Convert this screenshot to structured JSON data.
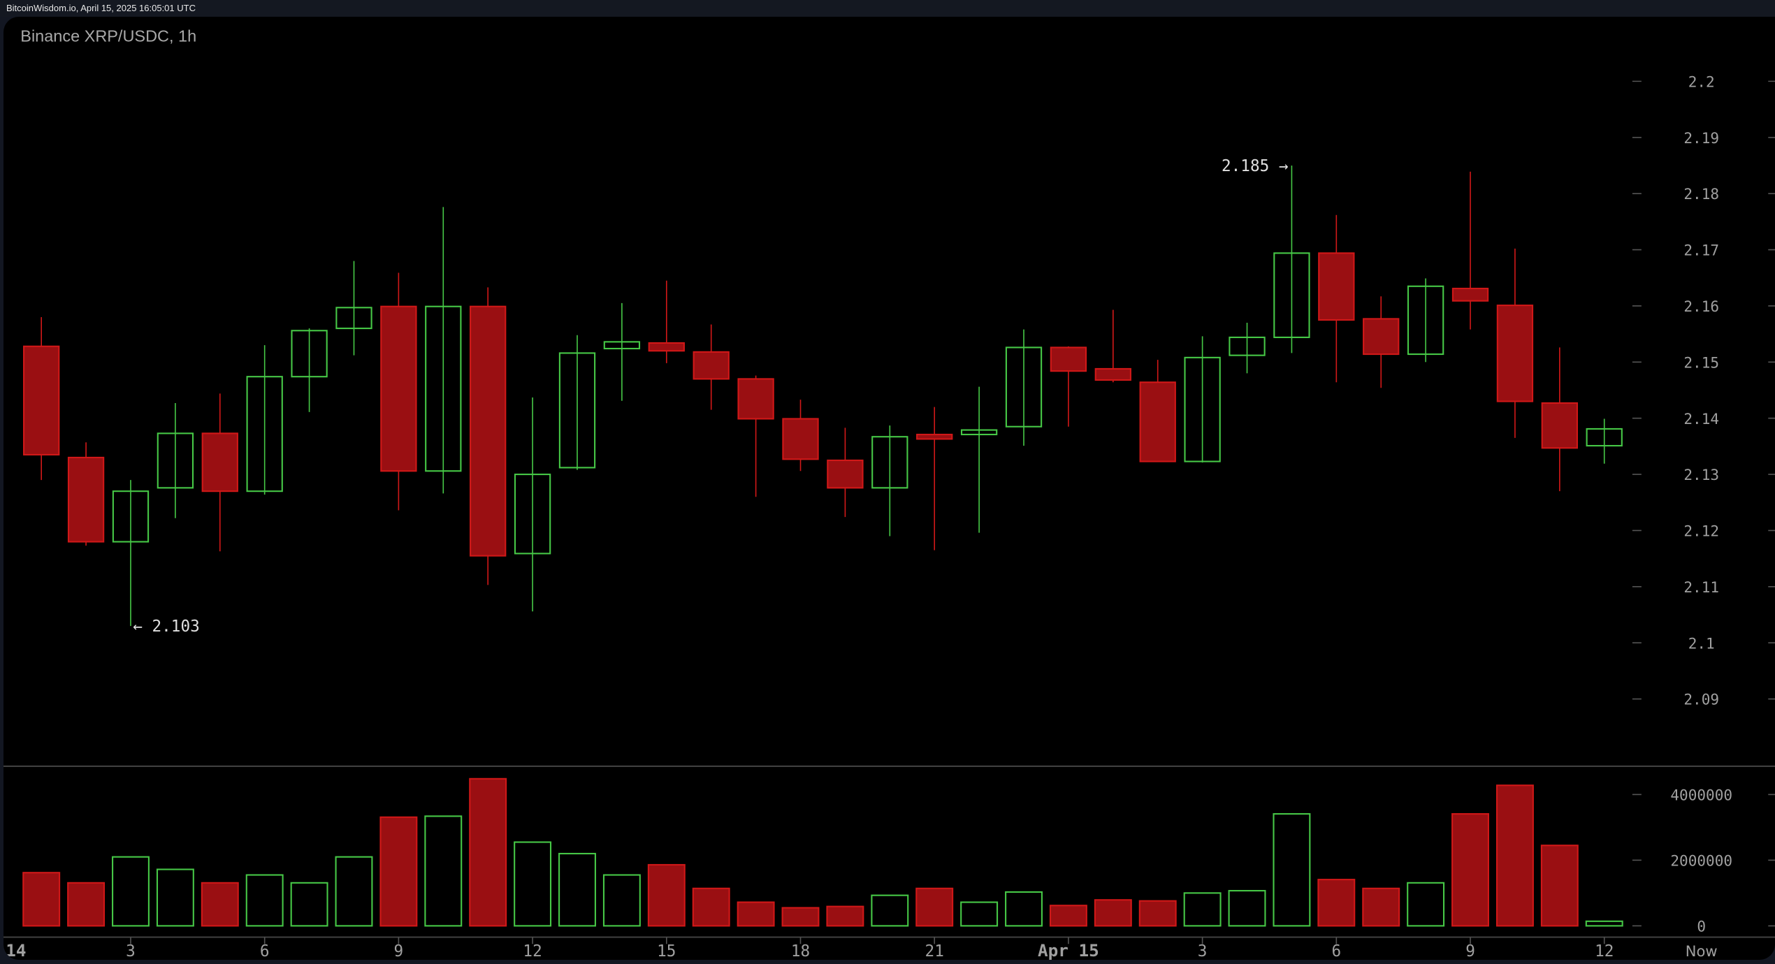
{
  "header": {
    "source_timestamp": "BitcoinWisdom.io, April 15, 2025 16:05:01 UTC"
  },
  "chart_data": {
    "type": "candlestick",
    "title": "Binance XRP/USDC, 1h",
    "colors": {
      "up": "#46c746",
      "down": "#d01818",
      "down_fill": "#9a0f12",
      "background": "#000000",
      "axis_text": "#a0a0a0"
    },
    "price_axis": {
      "ticks": [
        "2.2",
        "2.19",
        "2.18",
        "2.17",
        "2.16",
        "2.15",
        "2.14",
        "2.13",
        "2.12",
        "2.11",
        "2.1",
        "2.09"
      ],
      "range": [
        2.085,
        2.205
      ]
    },
    "volume_axis": {
      "ticks": [
        "4000000",
        "2000000",
        "0"
      ],
      "range": [
        0,
        4600000
      ]
    },
    "x_axis": {
      "ticks": [
        {
          "label": "14",
          "hour": 0
        },
        {
          "label": "3",
          "hour": 3
        },
        {
          "label": "6",
          "hour": 6
        },
        {
          "label": "9",
          "hour": 9
        },
        {
          "label": "12",
          "hour": 12
        },
        {
          "label": "15",
          "hour": 15
        },
        {
          "label": "18",
          "hour": 18
        },
        {
          "label": "21",
          "hour": 21
        },
        {
          "label": "Apr 15",
          "hour": 24
        },
        {
          "label": "3",
          "hour": 27
        },
        {
          "label": "6",
          "hour": 30
        },
        {
          "label": "9",
          "hour": 33
        },
        {
          "label": "12",
          "hour": 36
        }
      ],
      "now_label": "Now"
    },
    "annotations": {
      "high": {
        "label": "2.185 →",
        "value": 2.185,
        "hour": 29
      },
      "low": {
        "label": "← 2.103",
        "value": 2.103,
        "hour": 3
      }
    },
    "candles": [
      {
        "h": 1,
        "o": 2.1528,
        "hi": 2.158,
        "lo": 2.129,
        "c": 2.1335,
        "v": 1620000
      },
      {
        "h": 2,
        "o": 2.133,
        "hi": 2.1357,
        "lo": 2.1173,
        "c": 2.118,
        "v": 1310000
      },
      {
        "h": 3,
        "o": 2.118,
        "hi": 2.129,
        "lo": 2.103,
        "c": 2.127,
        "v": 2100000
      },
      {
        "h": 4,
        "o": 2.1276,
        "hi": 2.1427,
        "lo": 2.1222,
        "c": 2.1373,
        "v": 1720000
      },
      {
        "h": 5,
        "o": 2.1373,
        "hi": 2.1444,
        "lo": 2.1163,
        "c": 2.127,
        "v": 1310000
      },
      {
        "h": 6,
        "o": 2.127,
        "hi": 2.153,
        "lo": 2.1264,
        "c": 2.1474,
        "v": 1550000
      },
      {
        "h": 7,
        "o": 2.1474,
        "hi": 2.156,
        "lo": 2.1411,
        "c": 2.1556,
        "v": 1310000
      },
      {
        "h": 8,
        "o": 2.156,
        "hi": 2.168,
        "lo": 2.1512,
        "c": 2.1597,
        "v": 2100000
      },
      {
        "h": 9,
        "o": 2.1599,
        "hi": 2.1659,
        "lo": 2.1236,
        "c": 2.1306,
        "v": 3310000
      },
      {
        "h": 10,
        "o": 2.1306,
        "hi": 2.1776,
        "lo": 2.1266,
        "c": 2.1599,
        "v": 3340000
      },
      {
        "h": 11,
        "o": 2.1599,
        "hi": 2.1633,
        "lo": 2.1103,
        "c": 2.1155,
        "v": 4480000
      },
      {
        "h": 12,
        "o": 2.1159,
        "hi": 2.1437,
        "lo": 2.1056,
        "c": 2.13,
        "v": 2550000
      },
      {
        "h": 13,
        "o": 2.1312,
        "hi": 2.1548,
        "lo": 2.1308,
        "c": 2.1516,
        "v": 2200000
      },
      {
        "h": 14,
        "o": 2.1524,
        "hi": 2.1605,
        "lo": 2.1431,
        "c": 2.1536,
        "v": 1550000
      },
      {
        "h": 15,
        "o": 2.1534,
        "hi": 2.1645,
        "lo": 2.1498,
        "c": 2.152,
        "v": 1860000
      },
      {
        "h": 16,
        "o": 2.1518,
        "hi": 2.1567,
        "lo": 2.1415,
        "c": 2.147,
        "v": 1140000
      },
      {
        "h": 17,
        "o": 2.147,
        "hi": 2.1476,
        "lo": 2.126,
        "c": 2.1399,
        "v": 720000
      },
      {
        "h": 18,
        "o": 2.1399,
        "hi": 2.1433,
        "lo": 2.1306,
        "c": 2.1327,
        "v": 550000
      },
      {
        "h": 19,
        "o": 2.1325,
        "hi": 2.1383,
        "lo": 2.1224,
        "c": 2.1276,
        "v": 590000
      },
      {
        "h": 20,
        "o": 2.1276,
        "hi": 2.1387,
        "lo": 2.119,
        "c": 2.1367,
        "v": 930000
      },
      {
        "h": 21,
        "o": 2.1371,
        "hi": 2.142,
        "lo": 2.1165,
        "c": 2.1363,
        "v": 1140000
      },
      {
        "h": 22,
        "o": 2.1371,
        "hi": 2.1456,
        "lo": 2.1196,
        "c": 2.1379,
        "v": 720000
      },
      {
        "h": 23,
        "o": 2.1385,
        "hi": 2.1558,
        "lo": 2.1351,
        "c": 2.1526,
        "v": 1030000
      },
      {
        "h": 24,
        "o": 2.1526,
        "hi": 2.1528,
        "lo": 2.1385,
        "c": 2.1484,
        "v": 620000
      },
      {
        "h": 25,
        "o": 2.1488,
        "hi": 2.1593,
        "lo": 2.1464,
        "c": 2.1468,
        "v": 790000
      },
      {
        "h": 26,
        "o": 2.1464,
        "hi": 2.1504,
        "lo": 2.1323,
        "c": 2.1323,
        "v": 760000
      },
      {
        "h": 27,
        "o": 2.1323,
        "hi": 2.1546,
        "lo": 2.1321,
        "c": 2.1508,
        "v": 1000000
      },
      {
        "h": 28,
        "o": 2.1512,
        "hi": 2.157,
        "lo": 2.148,
        "c": 2.1544,
        "v": 1070000
      },
      {
        "h": 29,
        "o": 2.1544,
        "hi": 2.185,
        "lo": 2.1516,
        "c": 2.1694,
        "v": 3410000
      },
      {
        "h": 30,
        "o": 2.1694,
        "hi": 2.1762,
        "lo": 2.1464,
        "c": 2.1575,
        "v": 1410000
      },
      {
        "h": 31,
        "o": 2.1577,
        "hi": 2.1617,
        "lo": 2.1454,
        "c": 2.1514,
        "v": 1140000
      },
      {
        "h": 32,
        "o": 2.1514,
        "hi": 2.1649,
        "lo": 2.15,
        "c": 2.1635,
        "v": 1310000
      },
      {
        "h": 33,
        "o": 2.1631,
        "hi": 2.1839,
        "lo": 2.1558,
        "c": 2.1609,
        "v": 3410000
      },
      {
        "h": 34,
        "o": 2.1601,
        "hi": 2.1702,
        "lo": 2.1365,
        "c": 2.143,
        "v": 4280000
      },
      {
        "h": 35,
        "o": 2.1427,
        "hi": 2.1526,
        "lo": 2.127,
        "c": 2.1347,
        "v": 2450000
      },
      {
        "h": 36,
        "o": 2.1351,
        "hi": 2.1399,
        "lo": 2.1319,
        "c": 2.1381,
        "v": 140000
      }
    ]
  }
}
